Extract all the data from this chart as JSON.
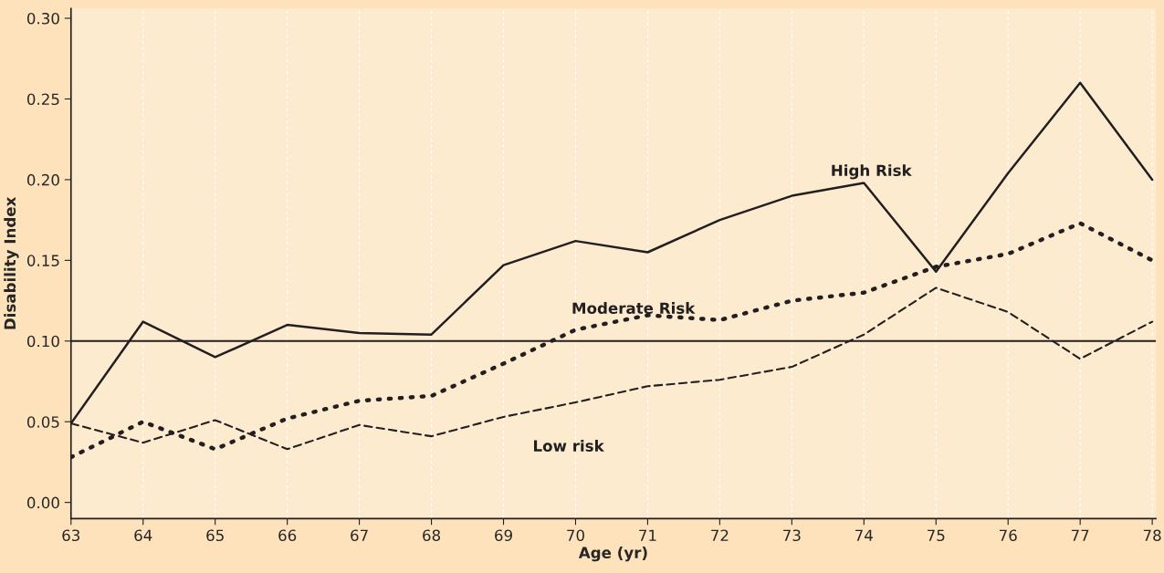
{
  "chart_data": {
    "type": "line",
    "xlabel": "Age (yr)",
    "ylabel": "Disability Index",
    "x": [
      63,
      64,
      65,
      66,
      67,
      68,
      69,
      70,
      71,
      72,
      73,
      74,
      75,
      76,
      77,
      78
    ],
    "series": [
      {
        "name": "High Risk",
        "color": "#231f20",
        "line_style": "solid",
        "values": [
          0.049,
          0.112,
          0.09,
          0.11,
          0.105,
          0.104,
          0.147,
          0.162,
          0.155,
          0.175,
          0.19,
          0.198,
          0.143,
          0.204,
          0.26,
          0.2
        ]
      },
      {
        "name": "Moderate Risk",
        "color": "#231f20",
        "line_style": "dotted",
        "values": [
          0.028,
          0.05,
          0.033,
          0.052,
          0.063,
          0.066,
          0.086,
          0.107,
          0.116,
          0.113,
          0.125,
          0.13,
          0.146,
          0.154,
          0.173,
          0.15
        ]
      },
      {
        "name": "Low risk",
        "color": "#231f20",
        "line_style": "dashed",
        "values": [
          0.049,
          0.037,
          0.051,
          0.033,
          0.048,
          0.041,
          0.053,
          0.062,
          0.072,
          0.076,
          0.084,
          0.104,
          0.133,
          0.118,
          0.089,
          0.112
        ]
      }
    ],
    "xlim": [
      63,
      78.05
    ],
    "xticks": [
      63,
      64,
      65,
      66,
      67,
      68,
      69,
      70,
      71,
      72,
      73,
      74,
      75,
      76,
      77,
      78
    ],
    "ylim": [
      -0.01,
      0.306
    ],
    "yticks": [
      {
        "value": 0,
        "label": "0.00"
      },
      {
        "value": 0.05,
        "label": "0.05"
      },
      {
        "value": 0.1,
        "label": "0.10"
      },
      {
        "value": 0.15,
        "label": "0.15"
      },
      {
        "value": 0.2,
        "label": "0.20"
      },
      {
        "value": 0.25,
        "label": "0.25"
      },
      {
        "value": 0.3,
        "label": "0.30"
      }
    ],
    "ref_lines": [
      {
        "axis": "y",
        "value": 0.1,
        "color": "#231f20",
        "line_style": "solid"
      }
    ],
    "grid": "x",
    "legend": false,
    "marker": "none"
  }
}
